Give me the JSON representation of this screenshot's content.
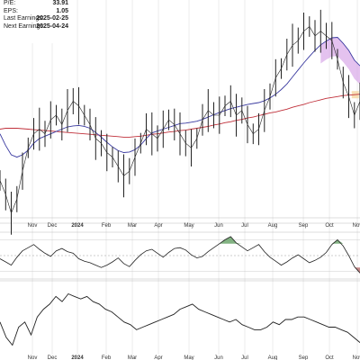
{
  "info": [
    {
      "label": "P/E:",
      "value": "33.91"
    },
    {
      "label": "EPS:",
      "value": "1.05"
    },
    {
      "label": "Last Earnings:",
      "value": "2025-02-25"
    },
    {
      "label": "Next Earnings:",
      "value": "2025-04-24"
    }
  ],
  "colors": {
    "price": "#222222",
    "ma_short": "#3a3aa0",
    "ma_long": "#c0303a",
    "osc_pos": "#5a9a5a",
    "osc_neg": "#b06060",
    "cloud_top": "#d8a8e8",
    "cloud_bottom": "#f6d9a8",
    "grid": "#d8d8d8"
  },
  "chart_data": [
    {
      "type": "line",
      "panel": "price",
      "x_labels": [
        "Nov",
        "Dec",
        "2024",
        "Feb",
        "Mar",
        "Apr",
        "May",
        "Jun",
        "Jul",
        "Aug",
        "Sep",
        "Oct",
        "Nov"
      ],
      "x_labels_bold": [
        "2024"
      ],
      "series": [
        {
          "role": "price",
          "values": [
            16,
            13,
            9,
            12,
            18,
            23,
            26,
            27,
            26,
            29,
            30,
            28,
            31,
            33,
            32,
            30,
            28,
            25,
            24,
            22,
            21,
            19,
            17,
            18,
            21,
            24,
            27,
            26,
            25,
            27,
            29,
            28,
            26,
            24,
            23,
            25,
            29,
            31,
            30,
            30,
            32,
            33,
            30,
            31,
            28,
            26,
            27,
            31,
            34,
            38,
            40,
            43,
            45,
            46,
            48,
            49,
            47,
            48,
            47,
            46,
            42,
            37,
            34,
            30,
            33
          ]
        },
        {
          "role": "ma_short",
          "values": [
            26,
            23.5,
            21.5,
            21,
            21.5,
            22.5,
            24,
            25,
            25.5,
            26,
            26.5,
            27,
            27.5,
            27.7,
            27.8,
            27.6,
            27.2,
            26.3,
            25.3,
            24.2,
            23.2,
            22.4,
            22,
            22.1,
            22.6,
            23.6,
            25,
            26.2,
            26.6,
            27,
            27.4,
            27.8,
            28.2,
            28.3,
            28.5,
            28.7,
            29.1,
            29.6,
            30.1,
            30.6,
            31,
            31.4,
            31.7,
            32,
            32.3,
            32.5,
            32.7,
            33.1,
            33.7,
            34.5,
            35.5,
            36.7,
            38.2,
            39.7,
            41.2,
            42.6,
            43.9,
            45.1,
            45.9,
            46.6,
            46.7,
            45.4,
            43.9,
            41.8,
            40.6
          ]
        },
        {
          "role": "ma_long",
          "values": [
            27,
            27.2,
            27.2,
            27.2,
            27.1,
            27,
            26.9,
            26.8,
            26.7,
            26.6,
            26.5,
            26.4,
            26.3,
            26.2,
            26.1,
            26,
            25.9,
            25.8,
            25.7,
            25.6,
            25.5,
            25.4,
            25.3,
            25.3,
            25.4,
            25.5,
            25.7,
            25.9,
            26,
            26.2,
            26.4,
            26.5,
            26.7,
            26.8,
            27,
            27.2,
            27.4,
            27.6,
            27.9,
            28.1,
            28.4,
            28.6,
            28.9,
            29.1,
            29.4,
            29.6,
            29.9,
            30.2,
            30.5,
            30.7,
            31,
            31.3,
            31.7,
            32,
            32.3,
            32.7,
            33,
            33.3,
            33.6,
            33.8,
            34,
            34.2,
            34.3,
            34.4,
            34.5
          ]
        }
      ]
    },
    {
      "type": "area",
      "panel": "oscillator",
      "series": [
        {
          "role": "oscillator",
          "values": [
            -4,
            -8,
            -12,
            -2,
            6,
            10,
            14,
            8,
            3,
            -1,
            6,
            9,
            5,
            3,
            -4,
            -7,
            -9,
            -12,
            -15,
            -12,
            -8,
            -3,
            -10,
            -14,
            -6,
            1,
            6,
            8,
            3,
            -2,
            4,
            9,
            10,
            7,
            1,
            -3,
            -1,
            5,
            10,
            15,
            20,
            24,
            16,
            11,
            6,
            10,
            14,
            5,
            -2,
            -7,
            -12,
            -8,
            -3,
            1,
            -4,
            -9,
            -6,
            -2,
            4,
            14,
            20,
            12,
            0,
            -14,
            -22
          ]
        }
      ]
    },
    {
      "type": "line",
      "panel": "lower",
      "series": [
        {
          "role": "lower",
          "values": [
            -2,
            -8,
            -11,
            -4,
            -2,
            -7,
            0,
            3,
            5,
            8,
            6,
            9,
            8,
            7,
            8,
            6,
            5,
            3,
            2,
            0,
            -2,
            -3,
            -5,
            -4,
            -3,
            -2,
            -1,
            0,
            1,
            3,
            4,
            5,
            3,
            2,
            1,
            0,
            -1,
            -2,
            -1,
            -3,
            -4,
            -5,
            -5,
            -4,
            -2,
            -3,
            -1,
            -1,
            0,
            0,
            -1,
            -2,
            -3,
            -4,
            -4,
            -5,
            -6,
            -8,
            -10
          ]
        }
      ]
    }
  ]
}
